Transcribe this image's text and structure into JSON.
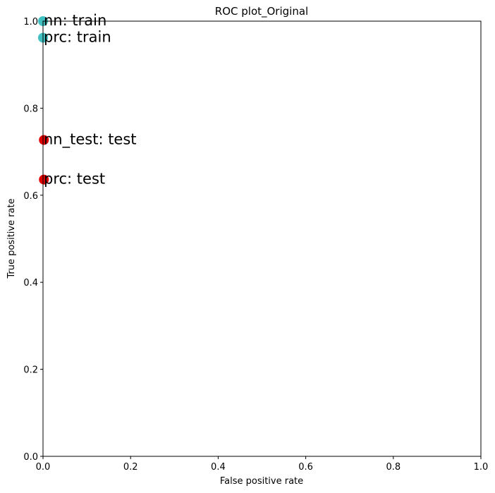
{
  "chart_data": {
    "type": "scatter",
    "title": "ROC plot_Original",
    "xlabel": "False positive rate",
    "ylabel": "True positive rate",
    "xlim": [
      0,
      1
    ],
    "ylim": [
      0,
      1
    ],
    "xticks": [
      0.0,
      0.2,
      0.4,
      0.6,
      0.8,
      1.0
    ],
    "yticks": [
      0.0,
      0.2,
      0.4,
      0.6,
      0.8,
      1.0
    ],
    "xtick_labels": [
      "0.0",
      "0.2",
      "0.4",
      "0.6",
      "0.8",
      "1.0"
    ],
    "ytick_labels": [
      "0.0",
      "0.2",
      "0.4",
      "0.6",
      "0.8",
      "1.0"
    ],
    "grid": false,
    "points": [
      {
        "label": "nn: train",
        "x": 0.0,
        "y": 1.0,
        "color": "#40c0c0"
      },
      {
        "label": "prc: train",
        "x": 0.0,
        "y": 0.962,
        "color": "#40c0c0"
      },
      {
        "label": "nn_test: test",
        "x": 0.002,
        "y": 0.727,
        "color": "#e00000"
      },
      {
        "label": "prc: test",
        "x": 0.002,
        "y": 0.636,
        "color": "#e00000"
      }
    ]
  }
}
